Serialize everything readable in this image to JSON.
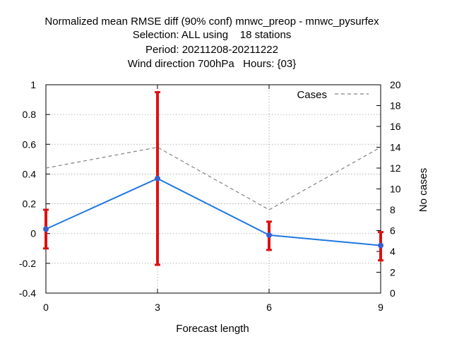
{
  "chart_data": {
    "type": "line",
    "title_lines": [
      "Normalized mean RMSE diff (90% conf) mnwc_preop - mnwc_pysurfex",
      "Selection: ALL using    18 stations",
      "Period: 20211208-20211222",
      "Wind direction 700hPa   Hours: {03}"
    ],
    "xlabel": "Forecast length",
    "ylabel": "",
    "y2label": "No cases",
    "x": [
      0,
      3,
      6,
      9
    ],
    "x_ticks": [
      "0",
      "3",
      "6",
      "9"
    ],
    "xlim": [
      0,
      9
    ],
    "ylim": [
      -0.4,
      1
    ],
    "y_ticks": [
      "1",
      "0.8",
      "0.6",
      "0.4",
      "0.2",
      "0",
      "-0.2",
      "-0.4"
    ],
    "y_tick_values": [
      1,
      0.8,
      0.6,
      0.4,
      0.2,
      0,
      -0.2,
      -0.4
    ],
    "y2lim": [
      0,
      20
    ],
    "y2_ticks": [
      "20",
      "18",
      "16",
      "14",
      "12",
      "10",
      "8",
      "6",
      "4",
      "2",
      "0"
    ],
    "y2_tick_values": [
      20,
      18,
      16,
      14,
      12,
      10,
      8,
      6,
      4,
      2,
      0
    ],
    "grid": true,
    "legend_position": "top-right",
    "series": [
      {
        "values": [
          0.03,
          0.37,
          -0.01,
          -0.08
        ],
        "err_low": [
          -0.1,
          -0.21,
          -0.11,
          -0.18
        ],
        "err_high": [
          0.16,
          0.95,
          0.08,
          0.01
        ],
        "color": "#1f77e0",
        "marker_color": "#3a5fcd",
        "errorbar_color": "#dd1111",
        "axis": "left"
      },
      {
        "name": "Cases",
        "values": [
          12,
          14,
          8,
          14
        ],
        "color": "#808080",
        "dashed": true,
        "axis": "right"
      }
    ]
  }
}
